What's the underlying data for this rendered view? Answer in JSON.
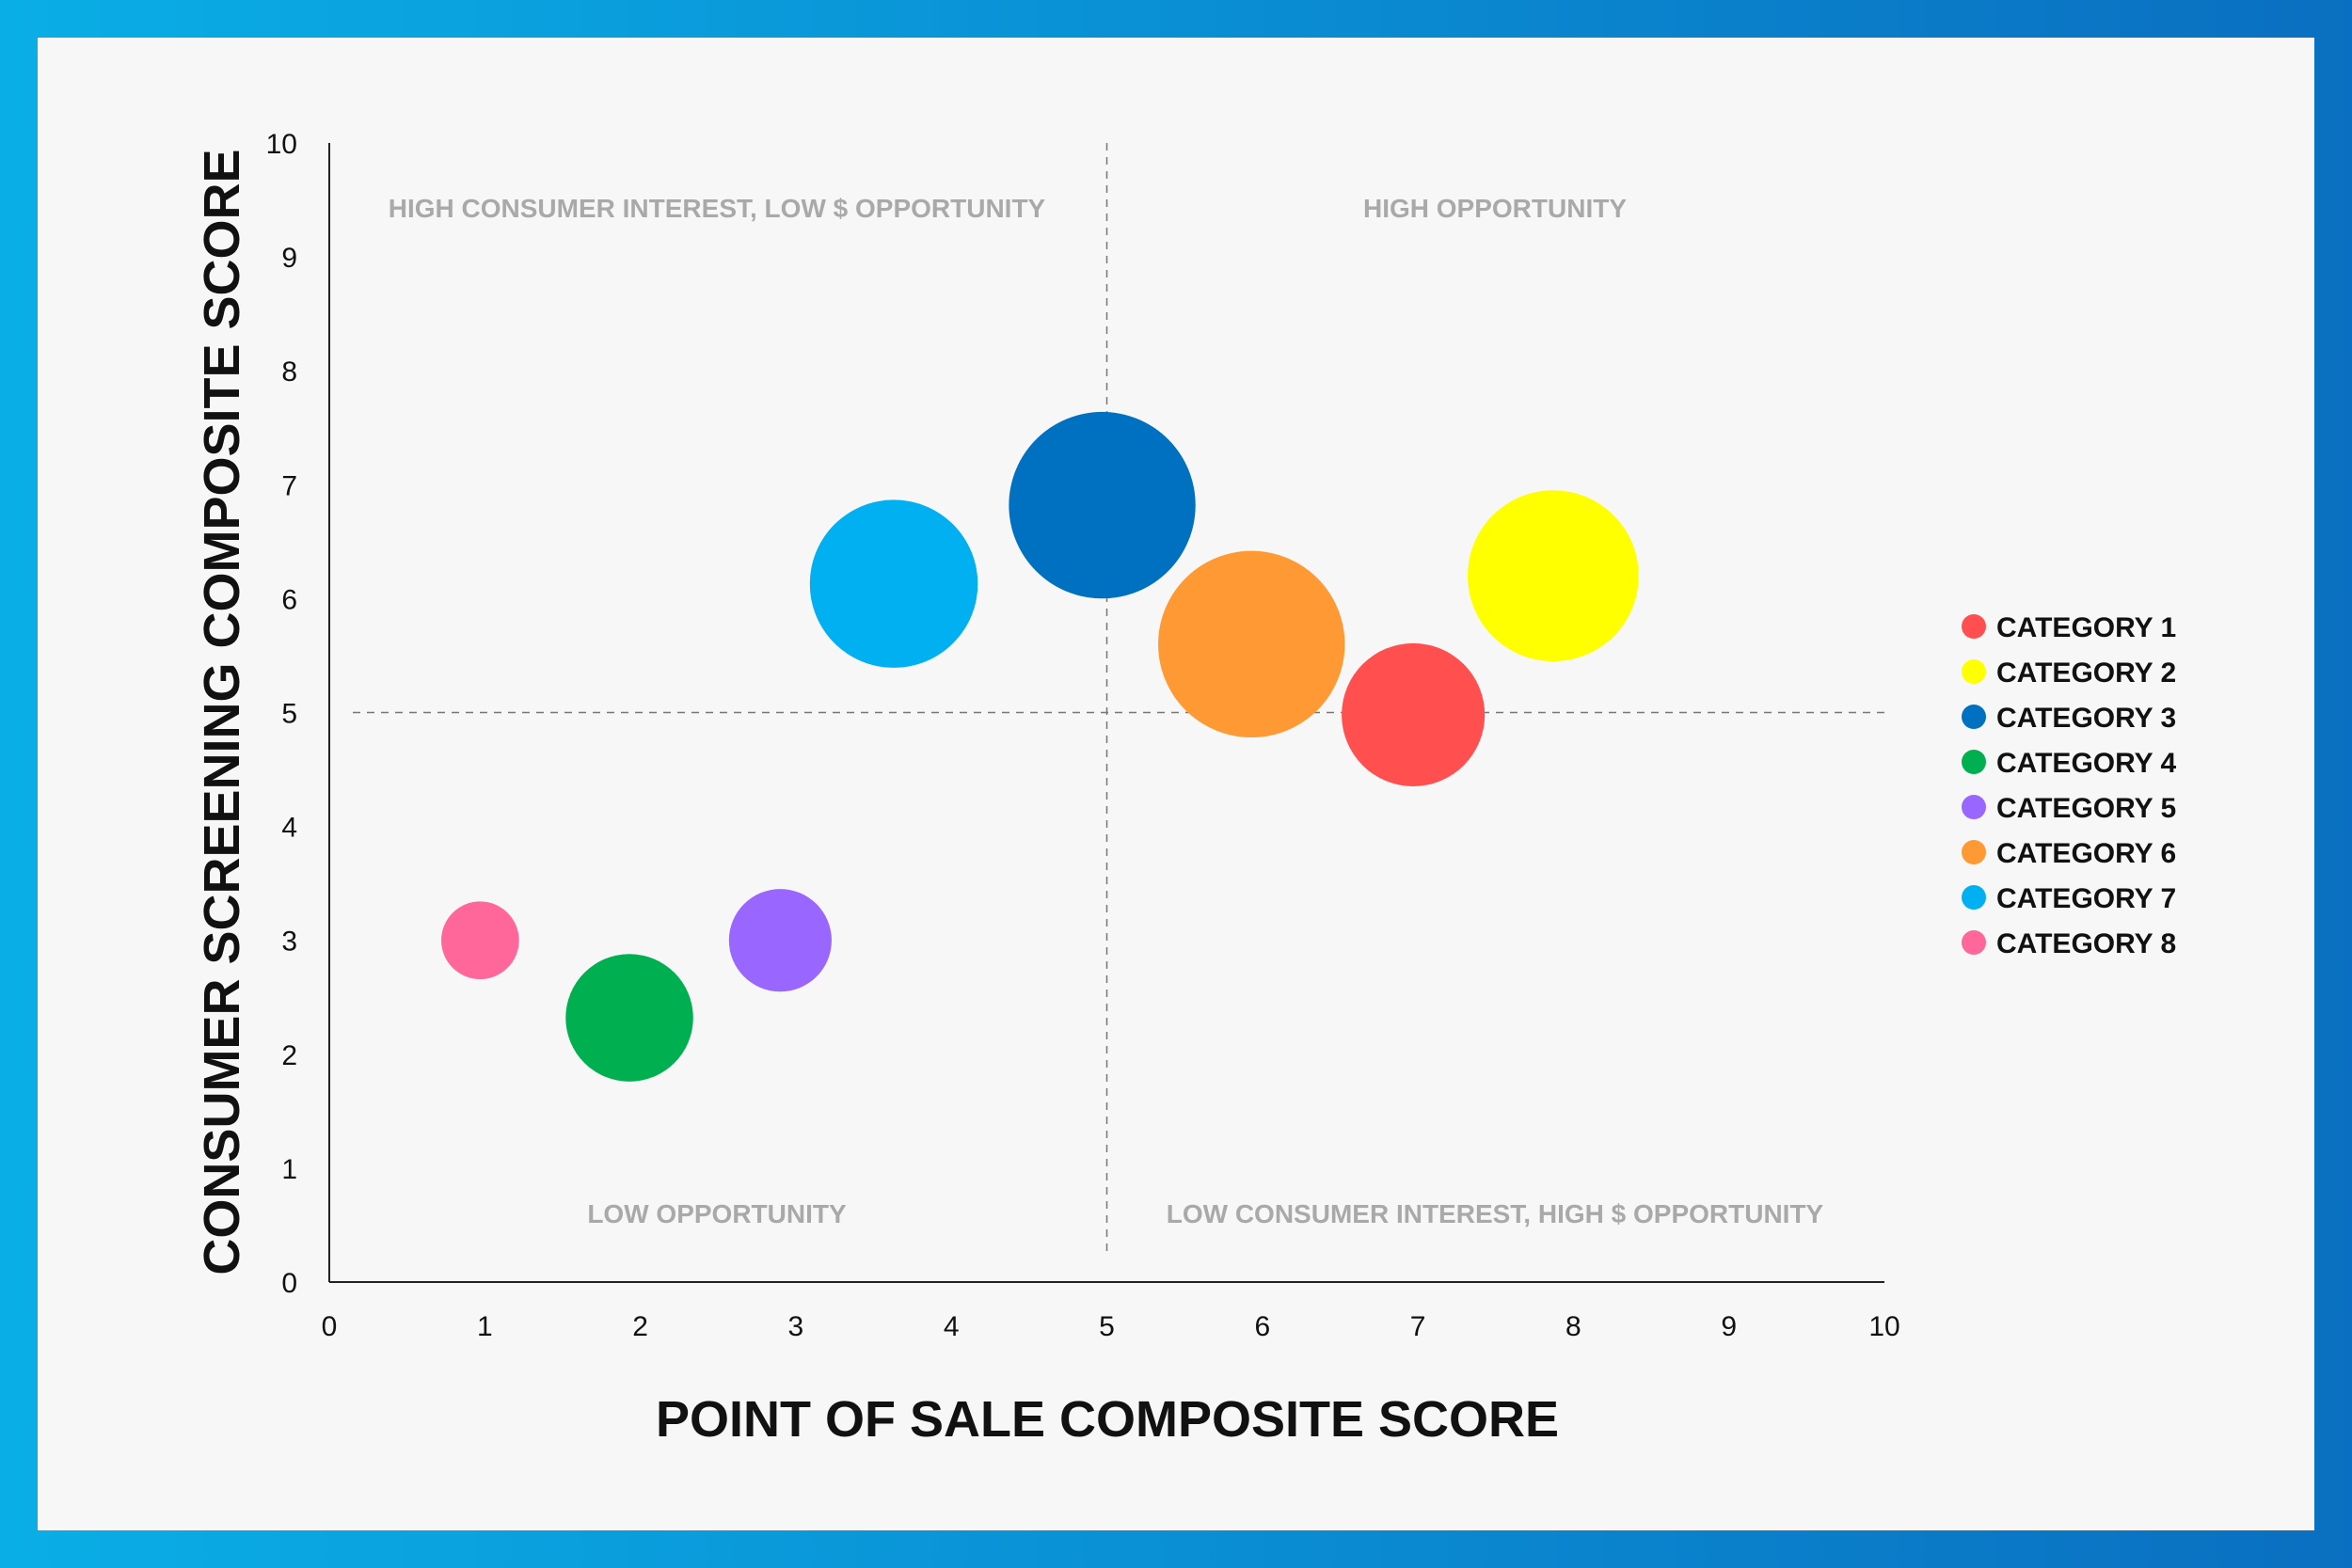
{
  "chart_data": {
    "type": "scatter",
    "xlabel": "POINT OF SALE COMPOSITE SCORE",
    "ylabel": "CONSUMER SCREENING COMPOSITE SCORE",
    "xlim": [
      0,
      10
    ],
    "ylim": [
      0,
      10
    ],
    "x_ticks": [
      "0",
      "1",
      "2",
      "3",
      "4",
      "5",
      "6",
      "7",
      "8",
      "9",
      "10"
    ],
    "y_ticks": [
      "0",
      "1",
      "2",
      "3",
      "4",
      "5",
      "6",
      "7",
      "8",
      "9",
      "10"
    ],
    "grid": false,
    "reference_lines": {
      "x": 5,
      "y": 5,
      "style": "dashed"
    },
    "legend_position": "right",
    "quadrant_labels": {
      "top_left": "HIGH CONSUMER INTEREST, LOW $ OPPORTUNITY",
      "top_right": "HIGH OPPORTUNITY",
      "bottom_left": "LOW OPPORTUNITY",
      "bottom_right": "LOW CONSUMER INTEREST, HIGH $ OPPORTUNITY"
    },
    "series": [
      {
        "name": "CATEGORY 1",
        "x": 6.97,
        "y": 4.98,
        "size": 0.92,
        "color": "#ff4f4f"
      },
      {
        "name": "CATEGORY 2",
        "x": 7.87,
        "y": 6.2,
        "size": 1.1,
        "color": "#ffff00"
      },
      {
        "name": "CATEGORY 3",
        "x": 4.97,
        "y": 6.82,
        "size": 1.2,
        "color": "#0070c0"
      },
      {
        "name": "CATEGORY 4",
        "x": 1.93,
        "y": 2.32,
        "size": 0.82,
        "color": "#00b050"
      },
      {
        "name": "CATEGORY 5",
        "x": 2.9,
        "y": 3.0,
        "size": 0.66,
        "color": "#9966ff"
      },
      {
        "name": "CATEGORY 6",
        "x": 5.93,
        "y": 5.6,
        "size": 1.2,
        "color": "#ff9933"
      },
      {
        "name": "CATEGORY 7",
        "x": 3.63,
        "y": 6.13,
        "size": 1.08,
        "color": "#00b0f0"
      },
      {
        "name": "CATEGORY 8",
        "x": 0.97,
        "y": 3.0,
        "size": 0.5,
        "color": "#ff6699"
      }
    ]
  }
}
